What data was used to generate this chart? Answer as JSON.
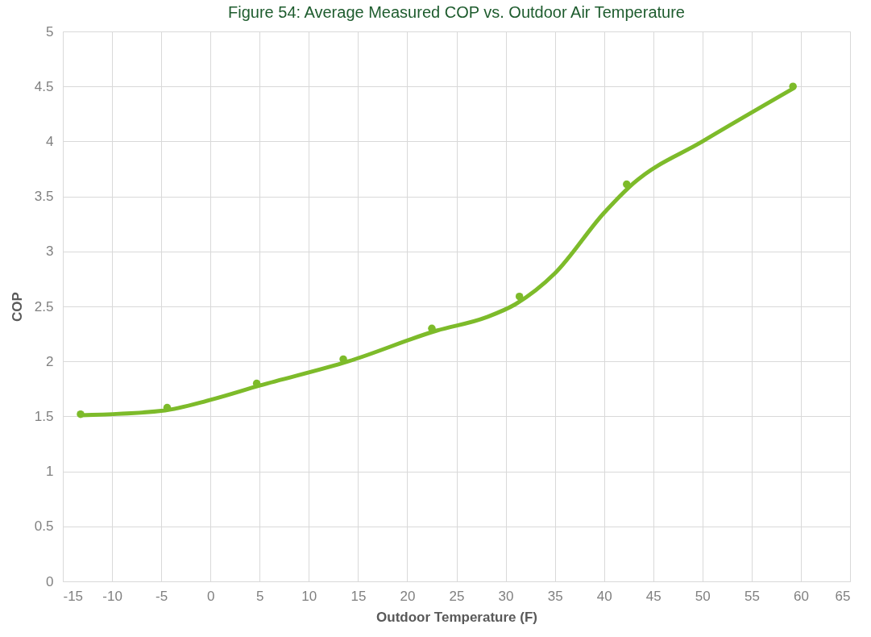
{
  "chart_data": {
    "type": "scatter",
    "title": "Figure 54: Average Measured COP vs. Outdoor Air Temperature",
    "xlabel": "Outdoor Temperature (F)",
    "ylabel": "COP",
    "xlim": [
      -15,
      65
    ],
    "xticks": [
      -15,
      -10,
      -5,
      0,
      5,
      10,
      15,
      20,
      25,
      30,
      35,
      40,
      45,
      50,
      55,
      60,
      65
    ],
    "ylim": [
      0,
      5
    ],
    "yticks": [
      0,
      0.5,
      1,
      1.5,
      2,
      2.5,
      3,
      3.5,
      4,
      4.5,
      5
    ],
    "grid": true,
    "series": [
      {
        "type": "scatter",
        "marker": "circle",
        "color": "#7dbb2a",
        "x": [
          -13.2,
          -4.4,
          4.7,
          13.5,
          22.5,
          31.4,
          42.3,
          59.2
        ],
        "values": [
          1.52,
          1.58,
          1.8,
          2.02,
          2.3,
          2.59,
          3.61,
          4.5
        ]
      },
      {
        "type": "line",
        "color": "#7dbb2a",
        "line_style": "solid",
        "x": [
          -13.2,
          -5,
          0,
          5,
          14,
          23,
          28,
          31,
          35,
          40,
          43,
          50,
          59.2
        ],
        "values": [
          1.51,
          1.55,
          1.65,
          1.78,
          2.0,
          2.28,
          2.4,
          2.52,
          2.8,
          3.35,
          3.62,
          4.0,
          4.48
        ]
      }
    ]
  }
}
